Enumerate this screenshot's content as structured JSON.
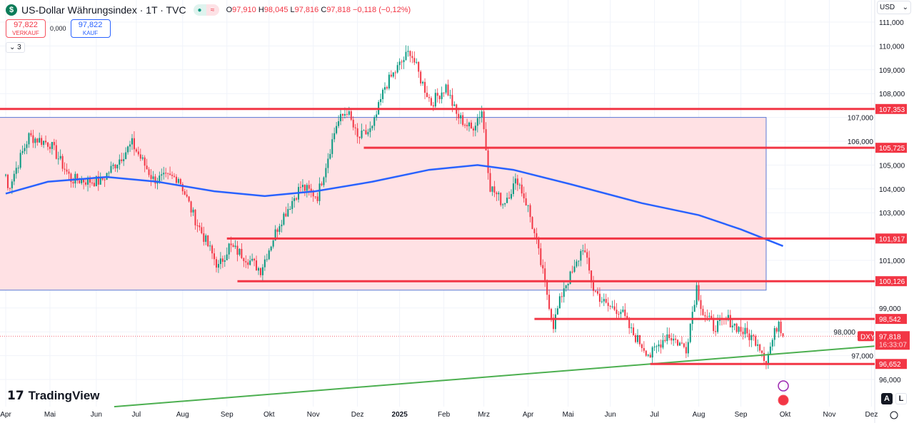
{
  "header": {
    "title": "US-Dollar Währungsindex · 1T · TVC",
    "o_label": "O",
    "o": "97,910",
    "h_label": "H",
    "h": "98,045",
    "l_label": "L",
    "l": "97,816",
    "c_label": "C",
    "c": "97,818",
    "change": "−0,118 (−0,12%)"
  },
  "trade": {
    "sell_price": "97,822",
    "sell_label": "VERKAUF",
    "spread": "0,000",
    "buy_price": "97,822",
    "buy_label": "KAUF"
  },
  "indicators_toggle": "3",
  "currency": "USD",
  "brand": "TradingView",
  "scale_buttons": {
    "auto": "A",
    "log": "L"
  },
  "colors": {
    "up": "#089981",
    "down": "#f23645",
    "ma": "#2962ff",
    "trend": "#4caf50",
    "zone": "#ffe1e4"
  },
  "chart_data": {
    "type": "candlestick",
    "symbol": "DXY",
    "last_price": "97,818",
    "countdown": "16:33:07",
    "ylim": [
      95.2,
      111.3
    ],
    "y_ticks": [
      "111,000",
      "110,000",
      "109,000",
      "108,000",
      "107,000",
      "106,000",
      "105,000",
      "104,000",
      "103,000",
      "101,000",
      "99,000",
      "98,000",
      "97,000",
      "96,000"
    ],
    "y_tick_values": [
      111,
      110,
      109,
      108,
      107,
      106,
      105,
      104,
      103,
      101,
      99,
      98,
      97,
      96
    ],
    "x_ticks": [
      "Apr",
      "Mai",
      "Jun",
      "Jul",
      "Aug",
      "Sep",
      "Okt",
      "Nov",
      "Dez",
      "2025",
      "Feb",
      "Mrz",
      "Apr",
      "Mai",
      "Jun",
      "Jul",
      "Aug",
      "Sep",
      "Okt",
      "Nov",
      "Dez"
    ],
    "x_tick_days": [
      0,
      21,
      43,
      62,
      84,
      105,
      125,
      146,
      167,
      187,
      208,
      227,
      248,
      267,
      287,
      308,
      329,
      349,
      370,
      391,
      411
    ],
    "close_path": [
      [
        0,
        104.6
      ],
      [
        1,
        104.0
      ],
      [
        11,
        106.2
      ],
      [
        21,
        105.9
      ],
      [
        31,
        104.4
      ],
      [
        45,
        104.3
      ],
      [
        60,
        105.9
      ],
      [
        70,
        104.4
      ],
      [
        82,
        104.5
      ],
      [
        89,
        102.9
      ],
      [
        101,
        100.7
      ],
      [
        106,
        101.6
      ],
      [
        113,
        101.2
      ],
      [
        121,
        100.6
      ],
      [
        130,
        102.6
      ],
      [
        140,
        104.1
      ],
      [
        148,
        103.7
      ],
      [
        157,
        106.7
      ],
      [
        162,
        107.3
      ],
      [
        167,
        106.1
      ],
      [
        174,
        106.5
      ],
      [
        180,
        108.3
      ],
      [
        187,
        109.2
      ],
      [
        192,
        109.8
      ],
      [
        197,
        108.6
      ],
      [
        202,
        107.6
      ],
      [
        209,
        108.3
      ],
      [
        214,
        107.1
      ],
      [
        221,
        106.5
      ],
      [
        226,
        107.3
      ],
      [
        230,
        104.1
      ],
      [
        236,
        103.4
      ],
      [
        243,
        104.4
      ],
      [
        248,
        103.2
      ],
      [
        252,
        101.7
      ],
      [
        257,
        99.6
      ],
      [
        260,
        98.3
      ],
      [
        265,
        99.9
      ],
      [
        270,
        100.6
      ],
      [
        274,
        101.6
      ],
      [
        279,
        99.8
      ],
      [
        285,
        99.1
      ],
      [
        292,
        98.9
      ],
      [
        297,
        98.0
      ],
      [
        306,
        97.0
      ],
      [
        314,
        97.9
      ],
      [
        323,
        97.3
      ],
      [
        328,
        99.9
      ],
      [
        331,
        98.8
      ],
      [
        336,
        98.2
      ],
      [
        343,
        98.5
      ],
      [
        350,
        98.0
      ],
      [
        357,
        97.6
      ],
      [
        361,
        96.8
      ],
      [
        367,
        98.5
      ],
      [
        369,
        97.8
      ]
    ],
    "moving_average": [
      [
        0,
        103.8
      ],
      [
        20,
        104.3
      ],
      [
        48,
        104.5
      ],
      [
        72,
        104.3
      ],
      [
        99,
        103.9
      ],
      [
        123,
        103.7
      ],
      [
        147,
        103.9
      ],
      [
        174,
        104.3
      ],
      [
        201,
        104.8
      ],
      [
        224,
        105.0
      ],
      [
        241,
        104.8
      ],
      [
        268,
        104.2
      ],
      [
        302,
        103.4
      ],
      [
        329,
        102.9
      ],
      [
        349,
        102.3
      ],
      [
        369,
        101.6
      ]
    ],
    "levels": [
      {
        "value": 107.353,
        "label": "107,353",
        "from_day": -3
      },
      {
        "value": 105.725,
        "label": "105,725",
        "from_day": 170
      },
      {
        "value": 101.917,
        "label": "101,917",
        "from_day": 105
      },
      {
        "value": 100.126,
        "label": "100,126",
        "from_day": 110
      },
      {
        "value": 98.542,
        "label": "98,542",
        "from_day": 251
      },
      {
        "value": 96.652,
        "label": "96,652",
        "from_day": 306
      }
    ],
    "zone": {
      "from_day": -3,
      "to_day": 361,
      "top": 107.0,
      "bottom": 99.75
    },
    "trendline": [
      [
        51.5,
        94.86
      ],
      [
        412.5,
        97.4
      ]
    ]
  }
}
